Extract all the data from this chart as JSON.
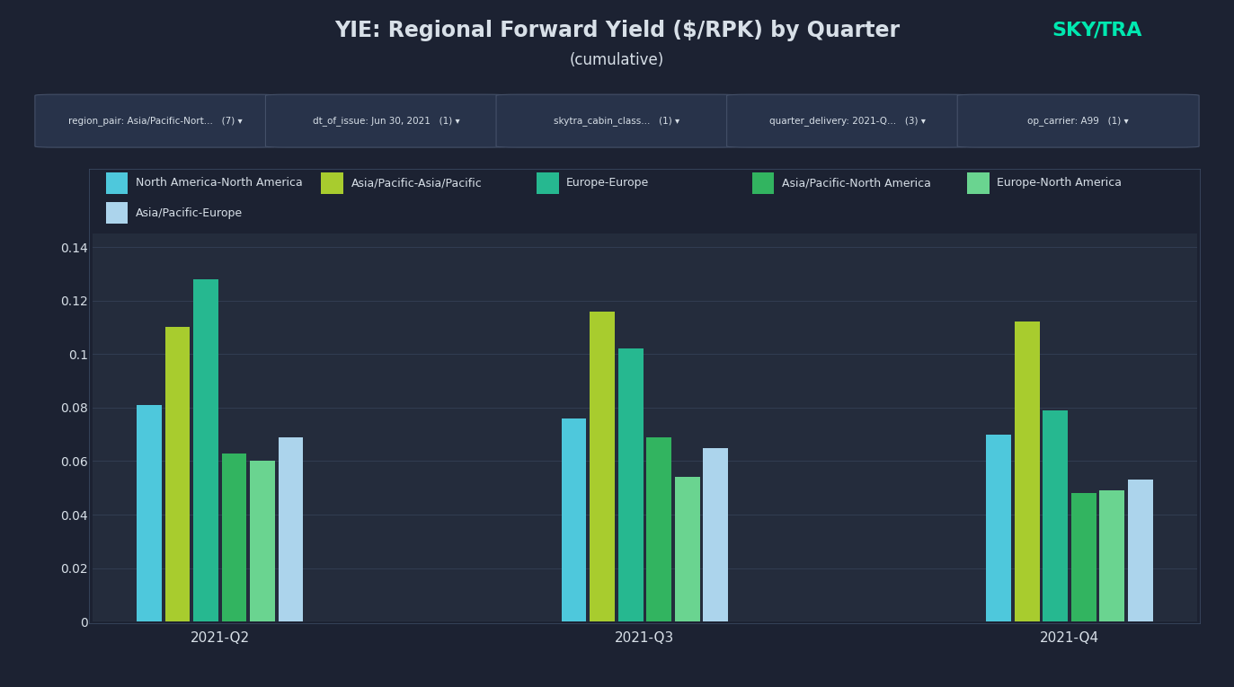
{
  "title": "YIE: Regional Forward Yield ($/RPK) by Quarter",
  "subtitle": "(cumulative)",
  "quarters": [
    "2021-Q2",
    "2021-Q3",
    "2021-Q4"
  ],
  "series": [
    {
      "label": "North America-North America",
      "color": "#4ec8dc",
      "values": [
        0.081,
        0.076,
        0.07
      ]
    },
    {
      "label": "Asia/Pacific-Asia/Pacific",
      "color": "#a8cc2e",
      "values": [
        0.11,
        0.116,
        0.112
      ]
    },
    {
      "label": "Europe-Europe",
      "color": "#26b890",
      "values": [
        0.128,
        0.102,
        0.079
      ]
    },
    {
      "label": "Asia/Pacific-North America",
      "color": "#32b460",
      "values": [
        0.063,
        0.069,
        0.048
      ]
    },
    {
      "label": "Europe-North America",
      "color": "#6ad490",
      "values": [
        0.06,
        0.054,
        0.049
      ]
    },
    {
      "label": "Asia/Pacific-Europe",
      "color": "#acd4ec",
      "values": [
        0.069,
        0.065,
        0.053
      ]
    }
  ],
  "ylim": [
    0,
    0.145
  ],
  "yticks": [
    0,
    0.02,
    0.04,
    0.06,
    0.08,
    0.1,
    0.12,
    0.14
  ],
  "ytick_labels": [
    "0",
    "0.02",
    "0.04",
    "0.06",
    "0.08",
    "0.1",
    "0.12",
    "0.14"
  ],
  "bg_color": "#1c2232",
  "plot_bg": "#242c3c",
  "text_color": "#d8e0e8",
  "grid_color": "#344056",
  "border_color": "#3a4860",
  "filter_bg": "#28334a",
  "filter_border": "#445068",
  "logo_color": "#00e8b0",
  "filter_items": [
    {
      "key": "region_pair:",
      "val": "Asia/Pacific-Nort...",
      "count": "(7)"
    },
    {
      "key": "dt_of_issue:",
      "val": "Jun 30, 2021",
      "count": "(1)"
    },
    {
      "key": "skytra_cabin_class...",
      "val": "",
      "count": "(1)"
    },
    {
      "key": "quarter_delivery:",
      "val": "2021-Q...",
      "count": "(3)"
    },
    {
      "key": "op_carrier:",
      "val": "A99",
      "count": "(1)"
    }
  ]
}
